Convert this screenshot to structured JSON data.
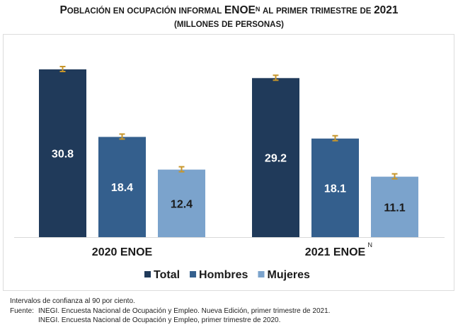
{
  "title": {
    "line1_prefix": "Población en ocupación informal",
    "line1_brand": "ENOE",
    "line1_sup": "N",
    "line1_suffix": "al primer trimestre de",
    "line1_year": "2021",
    "line2": "(millones de personas)"
  },
  "notes": {
    "confidence": "Intervalos de confianza al 90 por ciento.",
    "source_label": "Fuente:",
    "source_lines": [
      "INEGI. Encuesta Nacional de Ocupación y Empleo. Nueva Edición, primer trimestre de 2021.",
      "INEGI. Encuesta Nacional de Ocupación y Empleo, primer trimestre de 2020."
    ]
  },
  "chart_data": {
    "type": "bar",
    "title": "Población en ocupación informal ENOE^N al primer trimestre de 2021 (millones de personas)",
    "xlabel": "",
    "ylabel": "",
    "ylim": [
      0,
      33
    ],
    "grid": false,
    "legend_position": "bottom",
    "categories": [
      {
        "label": "2020 ENOE",
        "sup": ""
      },
      {
        "label": "2021 ENOE",
        "sup": "N"
      }
    ],
    "series": [
      {
        "name": "Total",
        "color": "#203a5a",
        "label_color": "#ffffff",
        "values": [
          30.8,
          29.2
        ],
        "labels": [
          "30.8",
          "29.2"
        ]
      },
      {
        "name": "Hombres",
        "color": "#345f8d",
        "label_color": "#ffffff",
        "values": [
          18.4,
          18.1
        ],
        "labels": [
          "18.4",
          "18.1"
        ]
      },
      {
        "name": "Mujeres",
        "color": "#7ba3cc",
        "label_color": "#1a1a1a",
        "values": [
          12.4,
          11.1
        ],
        "labels": [
          "12.4",
          "11.1"
        ]
      }
    ],
    "error_bar_color": "#c8962a",
    "annotations": [
      "Intervalos de confianza al 90 por ciento."
    ]
  }
}
